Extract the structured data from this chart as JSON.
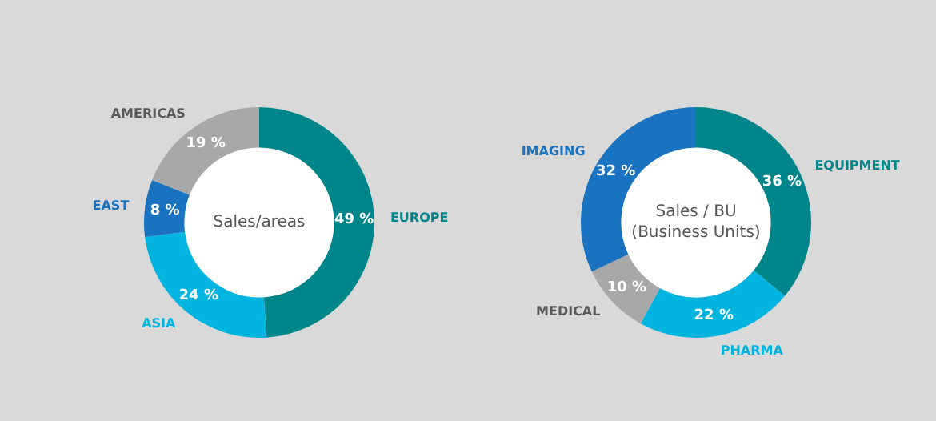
{
  "chart_data": [
    {
      "type": "donut",
      "title": "Sales/areas",
      "categories": [
        "EUROPE",
        "ASIA",
        "EAST",
        "AMERICAS"
      ],
      "values": [
        49,
        24,
        8,
        19
      ],
      "colors": [
        "#00868a",
        "#00b4e0",
        "#1a73c0",
        "#a8a8a8"
      ],
      "value_labels": [
        "49 %",
        "24 %",
        "8 %",
        "19 %"
      ],
      "legend": false
    },
    {
      "type": "donut",
      "title": "Sales / BU\n(Business Units)",
      "categories": [
        "EQUIPMENT",
        "PHARMA",
        "MEDICAL",
        "IMAGING"
      ],
      "values": [
        36,
        22,
        10,
        32
      ],
      "colors": [
        "#00868a",
        "#00b4e0",
        "#a8a8a8",
        "#1a73c0"
      ],
      "value_labels": [
        "36 %",
        "22 %",
        "10 %",
        "32 %"
      ],
      "legend": false
    }
  ]
}
